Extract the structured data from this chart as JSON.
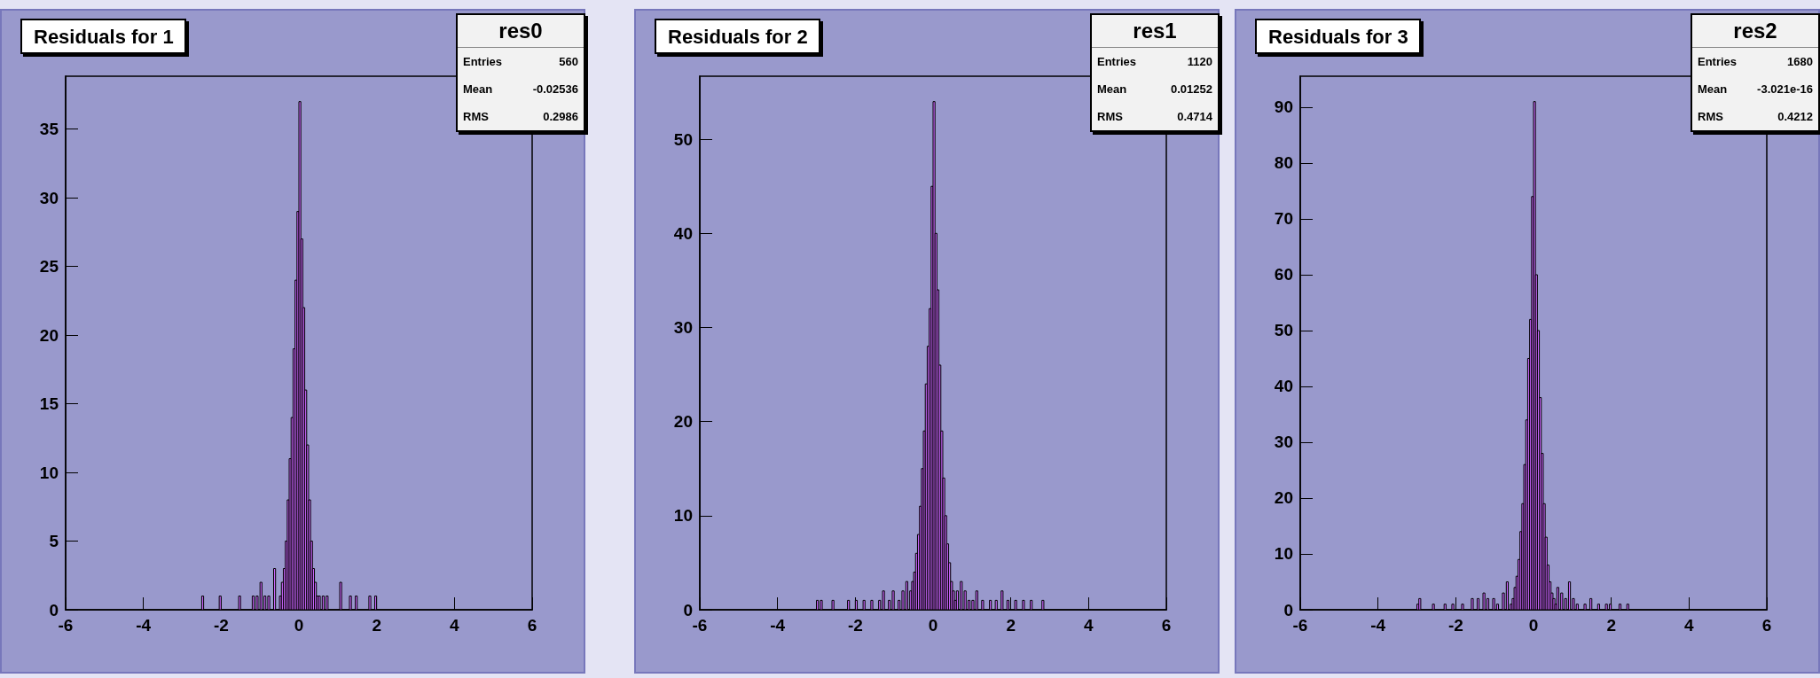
{
  "chart_data": [
    {
      "type": "histogram",
      "title": "Residuals for 1",
      "annotations": [
        "res0",
        "Entries",
        "560",
        "Mean",
        "-0.02536",
        "RMS",
        "0.2986"
      ],
      "color": "#cc66ff",
      "bins": [
        -3,
        -2.95,
        -2.9,
        -2.85,
        -2.8,
        -2.75,
        -2.7,
        -2.65,
        -2.6,
        -2.55,
        -2.5,
        -2.45,
        -2.4,
        -2.35,
        -2.3,
        -2.25,
        -2.2,
        -2.15,
        -2.1,
        -2.05,
        -2,
        -1.95,
        -1.9,
        -1.85,
        -1.8,
        -1.75,
        -1.7,
        -1.65,
        -1.6,
        -1.55,
        -1.5,
        -1.45,
        -1.4,
        -1.35,
        -1.3,
        -1.25,
        -1.2,
        -1.15,
        -1.1,
        -1.05,
        -1,
        -0.95,
        -0.9,
        -0.85,
        -0.8,
        -0.75,
        -0.7,
        -0.65,
        -0.6,
        -0.55,
        -0.5,
        -0.45,
        -0.4,
        -0.35,
        -0.3,
        -0.25,
        -0.2,
        -0.15,
        -0.1,
        -0.05,
        0,
        0.05,
        0.1,
        0.15,
        0.2,
        0.25,
        0.3,
        0.35,
        0.4,
        0.45,
        0.5,
        0.55,
        0.6,
        0.65,
        0.7,
        0.75,
        0.8,
        0.85,
        0.9,
        0.95,
        1,
        1.05,
        1.1,
        1.15,
        1.2,
        1.25,
        1.3,
        1.35,
        1.4,
        1.45,
        1.5,
        1.55,
        1.6,
        1.65,
        1.7,
        1.75,
        1.8,
        1.85,
        1.9,
        1.95,
        2,
        2.05,
        2.1,
        2.15,
        2.2,
        2.25,
        2.3,
        2.35,
        2.4,
        2.45,
        2.5,
        2.55,
        2.6,
        2.65,
        2.7,
        2.75,
        2.8,
        2.85,
        2.9,
        2.95,
        3
      ],
      "values": [
        0,
        0,
        0,
        0,
        0,
        0,
        0,
        0,
        0,
        0,
        1,
        0,
        0,
        0,
        0,
        0,
        0,
        0,
        0,
        1,
        0,
        0,
        0,
        0,
        0,
        0,
        0,
        0,
        0,
        1,
        0,
        0,
        0,
        0,
        0,
        0,
        1,
        0,
        1,
        0,
        2,
        0,
        1,
        0,
        1,
        0,
        0,
        3,
        0,
        0,
        1,
        2,
        3,
        5,
        8,
        11,
        14,
        19,
        24,
        29,
        37,
        27,
        22,
        16,
        12,
        8,
        5,
        3,
        2,
        1,
        1,
        0,
        1,
        0,
        1,
        0,
        0,
        0,
        0,
        0,
        0,
        2,
        0,
        0,
        0,
        0,
        1,
        0,
        0,
        1,
        0,
        0,
        0,
        0,
        0,
        0,
        1,
        0,
        0,
        1,
        0,
        0,
        0,
        0,
        0,
        0,
        0,
        0,
        0,
        0,
        0,
        0,
        0,
        0,
        0,
        0,
        0,
        0,
        0,
        0
      ],
      "xlim": [
        -6,
        6
      ],
      "xticks": [
        -6,
        -4,
        -2,
        0,
        2,
        4,
        6
      ],
      "ylim": [
        0,
        38.85
      ],
      "yticks": [
        0,
        5,
        10,
        15,
        20,
        25,
        30,
        35
      ],
      "grid": false
    },
    {
      "type": "histogram",
      "title": "Residuals for 2",
      "annotations": [
        "res1",
        "Entries",
        "1120",
        "Mean",
        "0.01252",
        "RMS",
        "0.4714"
      ],
      "color": "#cc66ff",
      "bins": [
        -3,
        -2.95,
        -2.9,
        -2.85,
        -2.8,
        -2.75,
        -2.7,
        -2.65,
        -2.6,
        -2.55,
        -2.5,
        -2.45,
        -2.4,
        -2.35,
        -2.3,
        -2.25,
        -2.2,
        -2.15,
        -2.1,
        -2.05,
        -2,
        -1.95,
        -1.9,
        -1.85,
        -1.8,
        -1.75,
        -1.7,
        -1.65,
        -1.6,
        -1.55,
        -1.5,
        -1.45,
        -1.4,
        -1.35,
        -1.3,
        -1.25,
        -1.2,
        -1.15,
        -1.1,
        -1.05,
        -1,
        -0.95,
        -0.9,
        -0.85,
        -0.8,
        -0.75,
        -0.7,
        -0.65,
        -0.6,
        -0.55,
        -0.5,
        -0.45,
        -0.4,
        -0.35,
        -0.3,
        -0.25,
        -0.2,
        -0.15,
        -0.1,
        -0.05,
        0,
        0.05,
        0.1,
        0.15,
        0.2,
        0.25,
        0.3,
        0.35,
        0.4,
        0.45,
        0.5,
        0.55,
        0.6,
        0.65,
        0.7,
        0.75,
        0.8,
        0.85,
        0.9,
        0.95,
        1,
        1.05,
        1.1,
        1.15,
        1.2,
        1.25,
        1.3,
        1.35,
        1.4,
        1.45,
        1.5,
        1.55,
        1.6,
        1.65,
        1.7,
        1.75,
        1.8,
        1.85,
        1.9,
        1.95,
        2,
        2.05,
        2.1,
        2.15,
        2.2,
        2.25,
        2.3,
        2.35,
        2.4,
        2.45,
        2.5,
        2.55,
        2.6,
        2.65,
        2.7,
        2.75,
        2.8,
        2.85,
        2.9,
        2.95,
        3
      ],
      "values": [
        1,
        0,
        1,
        0,
        0,
        0,
        0,
        0,
        1,
        0,
        0,
        0,
        0,
        0,
        0,
        0,
        1,
        0,
        0,
        0,
        1,
        0,
        0,
        0,
        1,
        0,
        0,
        0,
        1,
        0,
        0,
        0,
        1,
        0,
        2,
        0,
        0,
        1,
        0,
        2,
        0,
        0,
        1,
        0,
        2,
        0,
        3,
        0,
        2,
        3,
        4,
        6,
        8,
        11,
        15,
        19,
        24,
        28,
        32,
        45,
        54,
        40,
        34,
        26,
        19,
        14,
        10,
        7,
        5,
        3,
        2,
        1,
        2,
        0,
        3,
        0,
        2,
        0,
        1,
        0,
        1,
        0,
        2,
        0,
        0,
        1,
        0,
        0,
        0,
        1,
        0,
        0,
        1,
        0,
        0,
        2,
        0,
        0,
        1,
        0,
        0,
        0,
        1,
        0,
        0,
        0,
        1,
        0,
        0,
        0,
        1,
        0,
        0,
        0,
        0,
        0,
        1,
        0,
        0,
        0
      ],
      "xlim": [
        -6,
        6
      ],
      "xticks": [
        -6,
        -4,
        -2,
        0,
        2,
        4,
        6
      ],
      "ylim": [
        0,
        56.7
      ],
      "yticks": [
        0,
        10,
        20,
        30,
        40,
        50
      ],
      "grid": false
    },
    {
      "type": "histogram",
      "title": "Residuals for 3",
      "annotations": [
        "res2",
        "Entries",
        "1680",
        "Mean",
        "-3.021e-16",
        "RMS",
        "0.4212"
      ],
      "color": "#cc66ff",
      "bins": [
        -3,
        -2.95,
        -2.9,
        -2.85,
        -2.8,
        -2.75,
        -2.7,
        -2.65,
        -2.6,
        -2.55,
        -2.5,
        -2.45,
        -2.4,
        -2.35,
        -2.3,
        -2.25,
        -2.2,
        -2.15,
        -2.1,
        -2.05,
        -2,
        -1.95,
        -1.9,
        -1.85,
        -1.8,
        -1.75,
        -1.7,
        -1.65,
        -1.6,
        -1.55,
        -1.5,
        -1.45,
        -1.4,
        -1.35,
        -1.3,
        -1.25,
        -1.2,
        -1.15,
        -1.1,
        -1.05,
        -1,
        -0.95,
        -0.9,
        -0.85,
        -0.8,
        -0.75,
        -0.7,
        -0.65,
        -0.6,
        -0.55,
        -0.5,
        -0.45,
        -0.4,
        -0.35,
        -0.3,
        -0.25,
        -0.2,
        -0.15,
        -0.1,
        -0.05,
        0,
        0.05,
        0.1,
        0.15,
        0.2,
        0.25,
        0.3,
        0.35,
        0.4,
        0.45,
        0.5,
        0.55,
        0.6,
        0.65,
        0.7,
        0.75,
        0.8,
        0.85,
        0.9,
        0.95,
        1,
        1.05,
        1.1,
        1.15,
        1.2,
        1.25,
        1.3,
        1.35,
        1.4,
        1.45,
        1.5,
        1.55,
        1.6,
        1.65,
        1.7,
        1.75,
        1.8,
        1.85,
        1.9,
        1.95,
        2,
        2.05,
        2.1,
        2.15,
        2.2,
        2.25,
        2.3,
        2.35,
        2.4,
        2.45,
        2.5,
        2.55,
        2.6,
        2.65,
        2.7,
        2.75,
        2.8,
        2.85,
        2.9,
        2.95,
        3
      ],
      "values": [
        1,
        2,
        0,
        0,
        0,
        0,
        0,
        0,
        1,
        0,
        0,
        0,
        0,
        0,
        1,
        0,
        0,
        0,
        1,
        0,
        0,
        0,
        0,
        1,
        0,
        0,
        0,
        0,
        2,
        0,
        0,
        2,
        0,
        0,
        3,
        0,
        2,
        0,
        0,
        2,
        0,
        1,
        0,
        0,
        3,
        0,
        5,
        0,
        1,
        2,
        4,
        6,
        9,
        14,
        19,
        26,
        34,
        45,
        52,
        74,
        91,
        60,
        50,
        38,
        28,
        19,
        13,
        8,
        5,
        3,
        2,
        1,
        4,
        0,
        3,
        0,
        2,
        0,
        5,
        0,
        2,
        0,
        1,
        0,
        0,
        0,
        1,
        0,
        0,
        2,
        0,
        0,
        0,
        1,
        0,
        0,
        0,
        1,
        0,
        1,
        0,
        0,
        0,
        0,
        1,
        0,
        0,
        0,
        1,
        0,
        0,
        0,
        0,
        0,
        0,
        0,
        0,
        0,
        0,
        0
      ],
      "xlim": [
        -6,
        6
      ],
      "xticks": [
        -6,
        -4,
        -2,
        0,
        2,
        4,
        6
      ],
      "ylim": [
        0,
        95.55
      ],
      "yticks": [
        0,
        10,
        20,
        30,
        40,
        50,
        60,
        70,
        80,
        90
      ],
      "grid": false
    }
  ]
}
